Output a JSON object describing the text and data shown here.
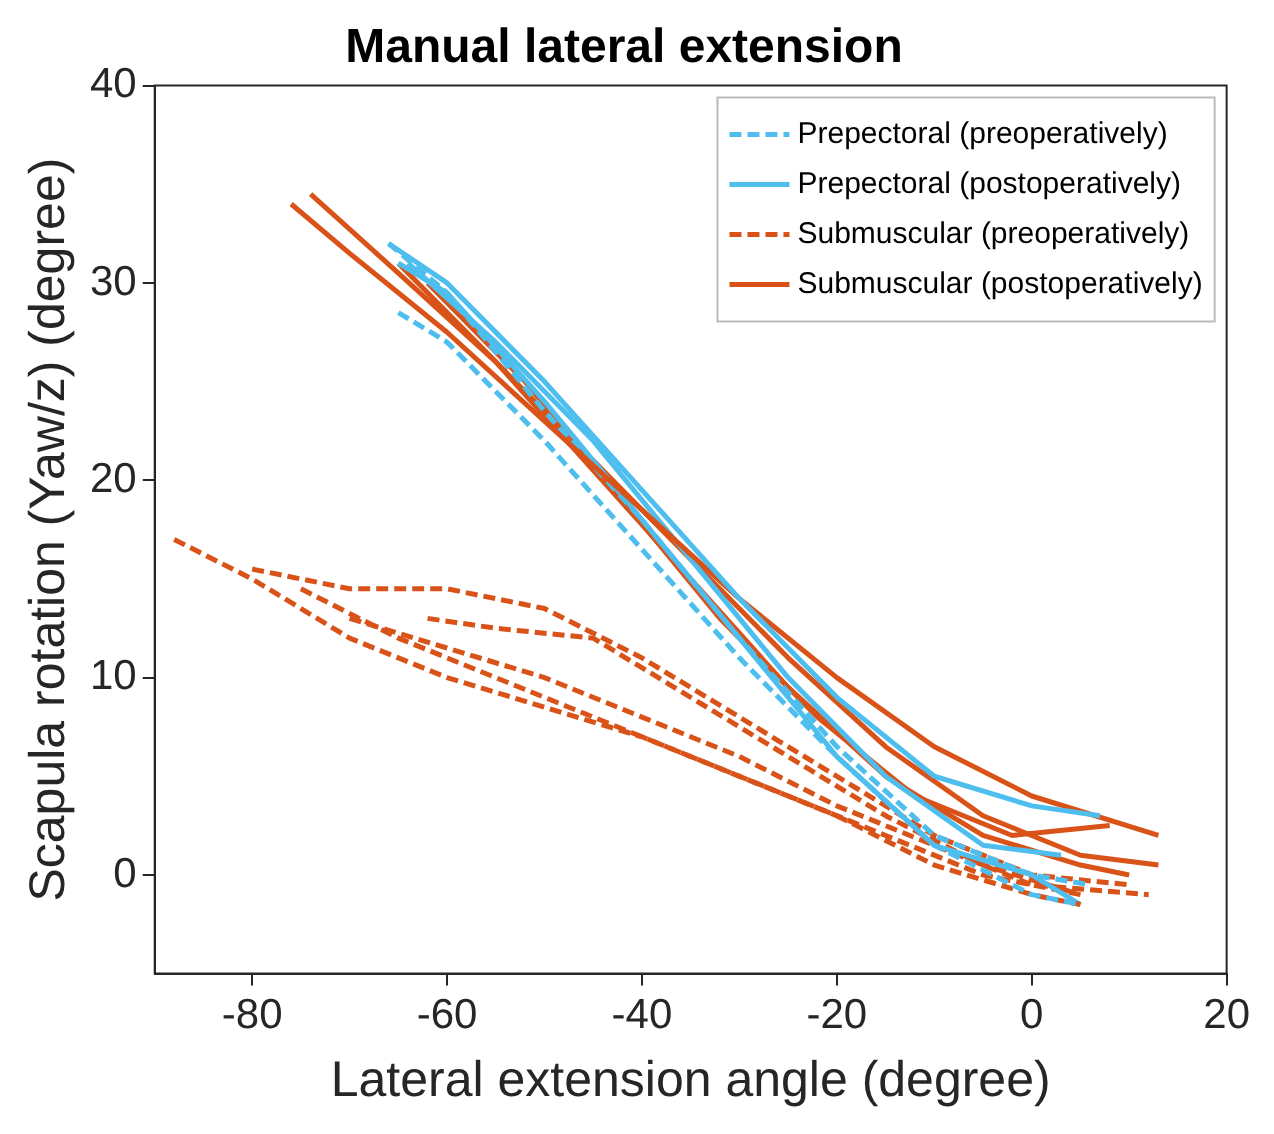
{
  "chart_data": {
    "type": "line",
    "title": "Manual lateral extension",
    "xlabel": "Lateral extension angle (degree)",
    "ylabel": "Scapula rotation (Yaw/z) (degree)",
    "xlim": [
      -90,
      20
    ],
    "xticks": [
      -80,
      -60,
      -40,
      -20,
      0,
      20
    ],
    "ylim": [
      -5,
      40
    ],
    "yticks": [
      0,
      10,
      20,
      30,
      40
    ],
    "legend": "top right",
    "marker": "none",
    "series": [
      {
        "name": "Prepectoral (preoperatively)",
        "color": "#4dbeee",
        "line_style": "dashed",
        "x": [
          -65,
          -60,
          -50,
          -40,
          -30,
          -20,
          -10,
          0,
          5
        ],
        "values": [
          28.5,
          27,
          22,
          16.5,
          11,
          6,
          1.5,
          -1,
          -1.5
        ]
      },
      {
        "name": "Prepectoral (postoperatively)",
        "color": "#4dbeee",
        "line_style": "solid",
        "x": [
          -66,
          -60,
          -50,
          -40,
          -30,
          -20,
          -10,
          0,
          7
        ],
        "values": [
          32,
          30,
          25,
          19.5,
          14,
          9,
          5,
          3.5,
          3
        ]
      },
      {
        "name": "Submuscular (preoperatively)",
        "color": "#d95319",
        "line_style": "dashed",
        "x": [
          -88,
          -80,
          -70,
          -60,
          -50,
          -40,
          -30,
          -20,
          -10,
          0,
          5
        ],
        "values": [
          17,
          15,
          12,
          10,
          8.5,
          7,
          5,
          3,
          0.5,
          -1,
          -1.5
        ]
      },
      {
        "name": "Submuscular (postoperatively)",
        "color": "#d95319",
        "line_style": "solid",
        "x": [
          -76,
          -70,
          -60,
          -50,
          -40,
          -30,
          -20,
          -10,
          0,
          13
        ],
        "values": [
          34,
          31.5,
          27.5,
          23,
          18.5,
          14,
          10,
          6.5,
          4,
          2
        ]
      },
      {
        "color": "#4dbeee",
        "line_style": "dashed",
        "x": [
          -66,
          -60,
          -50,
          -40,
          -30,
          -20,
          -10,
          0,
          6
        ],
        "values": [
          32,
          29.5,
          23.5,
          18,
          12,
          6.5,
          2,
          0,
          -0.5
        ]
      },
      {
        "color": "#4dbeee",
        "line_style": "solid",
        "x": [
          -65,
          -60,
          -50,
          -40,
          -30,
          -20,
          -10,
          0,
          5
        ],
        "values": [
          31,
          29.5,
          24,
          18,
          12,
          6,
          1.5,
          0,
          -1.5
        ]
      },
      {
        "color": "#4dbeee",
        "line_style": "solid",
        "x": [
          -64,
          -55,
          -45,
          -35,
          -25,
          -15,
          -5,
          3
        ],
        "values": [
          31,
          27,
          22,
          16,
          10,
          5,
          1.5,
          1
        ]
      },
      {
        "color": "#d95319",
        "line_style": "dashed",
        "x": [
          -80,
          -70,
          -60,
          -50,
          -40,
          -30,
          -20,
          -10,
          0,
          10
        ],
        "values": [
          15.5,
          14.5,
          14.5,
          13.5,
          11,
          8,
          5,
          2,
          0,
          -0.5
        ]
      },
      {
        "color": "#d95319",
        "line_style": "dashed",
        "x": [
          -70,
          -60,
          -50,
          -40,
          -30,
          -20,
          -10,
          0,
          12
        ],
        "values": [
          13,
          11.5,
          10,
          8,
          6,
          3.5,
          1.5,
          -0.5,
          -1
        ]
      },
      {
        "color": "#d95319",
        "line_style": "dashed",
        "x": [
          -62,
          -55,
          -45,
          -35,
          -25,
          -15,
          -5,
          5
        ],
        "values": [
          13,
          12.5,
          12,
          9,
          6,
          3,
          0.5,
          -1
        ]
      },
      {
        "color": "#d95319",
        "line_style": "dashed",
        "x": [
          -75,
          -65,
          -55,
          -45,
          -35,
          -25,
          -15,
          -5,
          5
        ],
        "values": [
          14.5,
          12,
          10,
          8,
          6,
          4,
          2,
          0,
          -1
        ]
      },
      {
        "color": "#d95319",
        "line_style": "solid",
        "x": [
          -74,
          -65,
          -55,
          -45,
          -35,
          -25,
          -15,
          -5,
          5,
          13
        ],
        "values": [
          34.5,
          30.5,
          26,
          21,
          16,
          11,
          6.5,
          3,
          1,
          0.5
        ]
      },
      {
        "color": "#d95319",
        "line_style": "solid",
        "x": [
          -65,
          -55,
          -45,
          -35,
          -25,
          -15,
          -5,
          5,
          10
        ],
        "values": [
          31,
          26,
          20.5,
          15,
          9.5,
          5,
          2,
          0.5,
          0
        ]
      },
      {
        "color": "#d95319",
        "line_style": "solid",
        "x": [
          -62,
          -52,
          -42,
          -32,
          -22,
          -12,
          -2,
          8
        ],
        "values": [
          30,
          25,
          19,
          13,
          8,
          4,
          2,
          2.5
        ]
      }
    ]
  }
}
